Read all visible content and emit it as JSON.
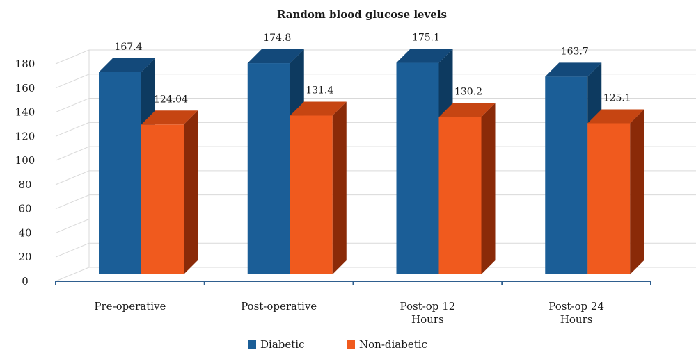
{
  "chart_data": {
    "type": "bar",
    "title": "Random blood glucose levels",
    "categories": [
      [
        "Pre-operative"
      ],
      [
        "Post-operative"
      ],
      [
        "Post-op 12",
        "Hours"
      ],
      [
        "Post-op 24",
        "Hours"
      ]
    ],
    "series": [
      {
        "name": "Diabetic",
        "values": [
          167.4,
          174.8,
          175.1,
          163.7
        ],
        "labels": [
          "167.4",
          "174.8",
          "175.1",
          "163.7"
        ],
        "color": "#1b5e97",
        "side_color": "#0d3a60",
        "top_color": "#13497a"
      },
      {
        "name": "Non-diabetic",
        "values": [
          124.04,
          131.4,
          130.2,
          125.1
        ],
        "labels": [
          "124.04",
          "131.4",
          "130.2",
          "125.1"
        ],
        "color": "#f05a1e",
        "side_color": "#8a2a08",
        "top_color": "#c64512"
      }
    ],
    "ylim": [
      0,
      180
    ],
    "yticks": [
      0,
      20,
      40,
      60,
      80,
      100,
      120,
      140,
      160,
      180
    ],
    "grid": true,
    "legend": "bottom",
    "three_d": true
  }
}
